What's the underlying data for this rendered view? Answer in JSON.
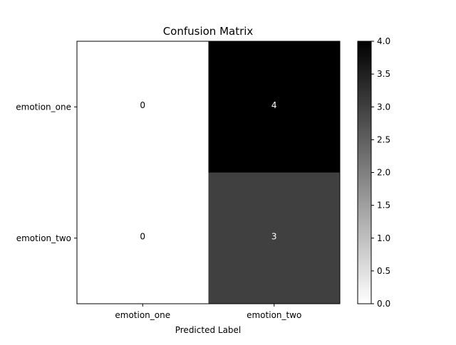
{
  "chart_data": {
    "type": "heatmap",
    "title": "Confusion Matrix",
    "xlabel": "Predicted Label",
    "ylabel": "",
    "x_categories": [
      "emotion_one",
      "emotion_two"
    ],
    "y_categories": [
      "emotion_one",
      "emotion_two"
    ],
    "values": [
      [
        0,
        4
      ],
      [
        0,
        3
      ]
    ],
    "colormap": "grays",
    "vmin": 0,
    "vmax": 4,
    "colorbar_ticks": [
      "0.0",
      "0.5",
      "1.0",
      "1.5",
      "2.0",
      "2.5",
      "3.0",
      "3.5",
      "4.0"
    ],
    "low_color": "#ffffff",
    "high_color": "#000000",
    "grid": false
  }
}
